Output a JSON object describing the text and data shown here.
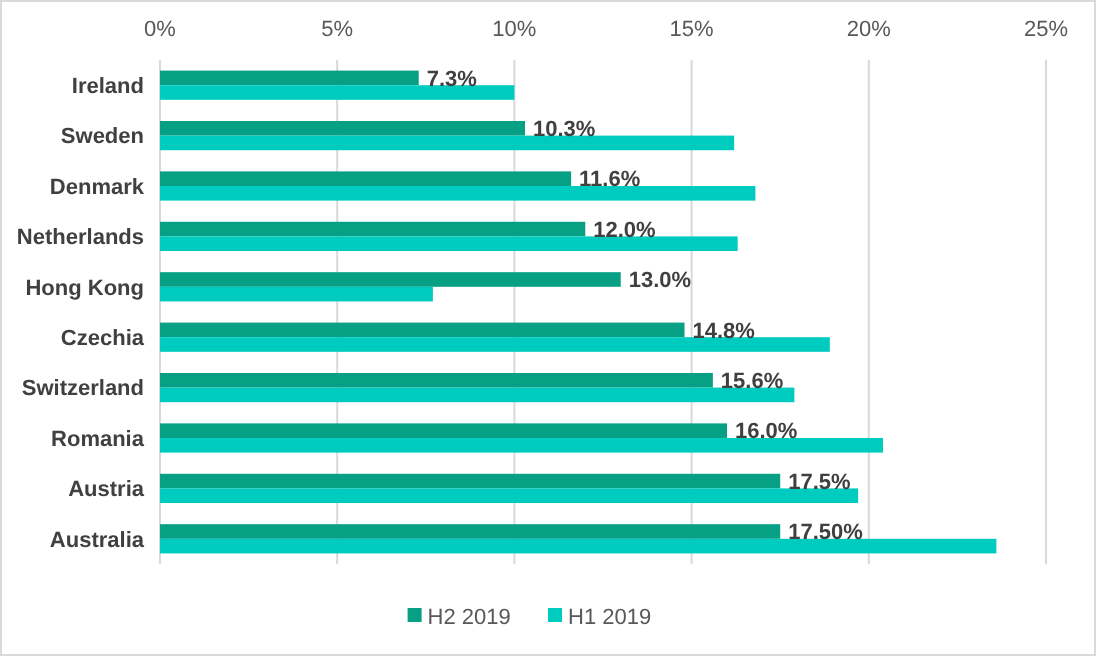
{
  "chart_data": {
    "type": "bar",
    "orientation": "horizontal",
    "categories": [
      "Ireland",
      "Sweden",
      "Denmark",
      "Netherlands",
      "Hong Kong",
      "Czechia",
      "Switzerland",
      "Romania",
      "Austria",
      "Australia"
    ],
    "series": [
      {
        "name": "H2 2019",
        "color": "#07a085",
        "values": [
          7.3,
          10.3,
          11.6,
          12.0,
          13.0,
          14.8,
          15.6,
          16.0,
          17.5,
          17.5
        ],
        "value_labels": [
          "7.3%",
          "10.3%",
          "11.6%",
          "12.0%",
          "13.0%",
          "14.8%",
          "15.6%",
          "16.0%",
          "17.5%",
          "17.50%"
        ]
      },
      {
        "name": "H1 2019",
        "color": "#00cbbf",
        "values": [
          10.0,
          16.2,
          16.8,
          16.3,
          7.7,
          18.9,
          17.9,
          20.4,
          19.7,
          23.6
        ]
      }
    ],
    "xlim": [
      0,
      25
    ],
    "xticks": [
      {
        "value": 0,
        "label": "0%"
      },
      {
        "value": 5,
        "label": "5%"
      },
      {
        "value": 10,
        "label": "10%"
      },
      {
        "value": 15,
        "label": "15%"
      },
      {
        "value": 20,
        "label": "20%"
      },
      {
        "value": 25,
        "label": "25%"
      }
    ],
    "grid": "x",
    "legend": "bottom"
  }
}
